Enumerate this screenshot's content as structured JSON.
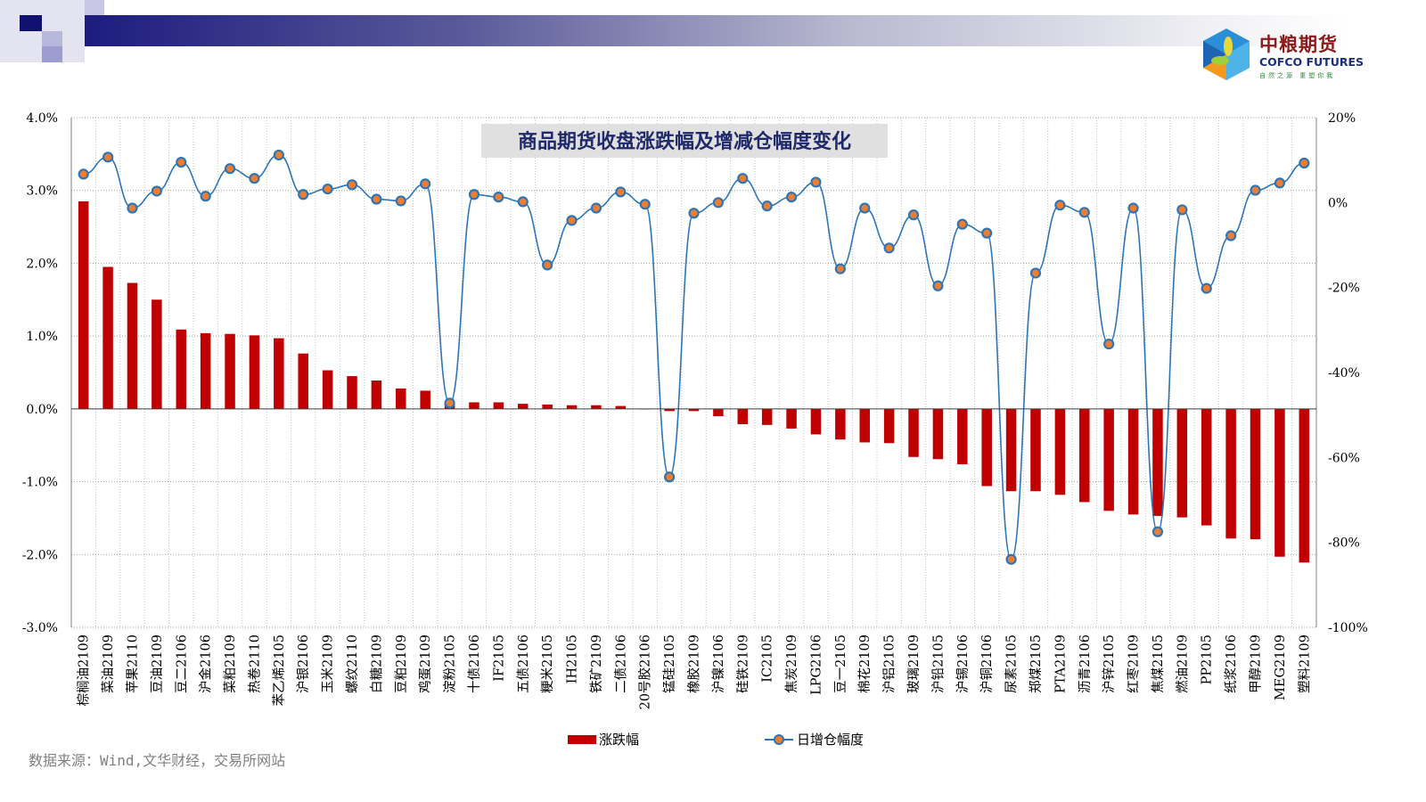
{
  "logo": {
    "cn": "中粮期货",
    "en": "COFCO FUTURES",
    "slogan": "自然之源 重塑你我"
  },
  "source": "数据来源：Wind,文华财经，交易所网站",
  "colors": {
    "bar": "#c00000",
    "line": "#2e75b6",
    "marker": "#ed7d31",
    "title_bg": "#e0e0e0",
    "title_text": "#1f2a6b"
  },
  "chart_data": {
    "type": "bar+line",
    "title": "商品期货收盘涨跌幅及增减仓幅度变化",
    "categories": [
      "棕榈油2109",
      "菜油2109",
      "苹果2110",
      "豆油2109",
      "豆二2106",
      "沪金2106",
      "菜粕2109",
      "热卷2110",
      "苯乙烯2105",
      "沪银2106",
      "玉米2109",
      "螺纹2110",
      "白糖2109",
      "豆粕2109",
      "鸡蛋2109",
      "淀粉2105",
      "十债2106",
      "IF2105",
      "五债2106",
      "粳米2105",
      "IH2105",
      "铁矿2109",
      "二债2106",
      "20号胶2106",
      "锰硅2105",
      "橡胶2109",
      "沪镍2106",
      "硅铁2109",
      "IC2105",
      "焦炭2109",
      "LPG2106",
      "豆一2105",
      "棉花2109",
      "沪铝2105",
      "玻璃2109",
      "沪铅2105",
      "沪锡2106",
      "沪铜2106",
      "尿素2105",
      "郑煤2105",
      "PTA2109",
      "沥青2106",
      "沪锌2105",
      "红枣2109",
      "焦煤2105",
      "燃油2109",
      "PP2105",
      "纸浆2106",
      "甲醇2109",
      "MEG2109",
      "塑料2109"
    ],
    "series": [
      {
        "name": "涨跌幅",
        "type": "bar",
        "axis": "left",
        "values": [
          2.85,
          1.95,
          1.73,
          1.5,
          1.09,
          1.04,
          1.03,
          1.01,
          0.97,
          0.76,
          0.53,
          0.45,
          0.39,
          0.28,
          0.25,
          0.07,
          0.09,
          0.09,
          0.07,
          0.06,
          0.05,
          0.05,
          0.04,
          0.0,
          -0.03,
          -0.03,
          -0.1,
          -0.21,
          -0.22,
          -0.27,
          -0.35,
          -0.42,
          -0.46,
          -0.47,
          -0.66,
          -0.69,
          -0.76,
          -1.06,
          -1.13,
          -1.13,
          -1.18,
          -1.28,
          -1.4,
          -1.45,
          -1.47,
          -1.49,
          -1.6,
          -1.78,
          -1.79,
          -2.03,
          -2.11
        ]
      },
      {
        "name": "日增仓幅度",
        "type": "line",
        "axis": "right",
        "values": [
          6.7,
          10.7,
          -1.3,
          2.7,
          9.5,
          1.5,
          8.0,
          5.7,
          11.2,
          1.9,
          3.2,
          4.2,
          0.8,
          0.4,
          4.4,
          -47.2,
          1.9,
          1.3,
          0.2,
          -14.7,
          -4.2,
          -1.3,
          2.5,
          -0.4,
          -64.6,
          -2.5,
          0.0,
          5.7,
          -0.8,
          1.3,
          4.8,
          -15.6,
          -1.3,
          -10.7,
          -2.9,
          -19.6,
          -5.1,
          -7.2,
          -84.0,
          -16.6,
          -0.6,
          -2.3,
          -33.3,
          -1.3,
          -77.5,
          -1.7,
          -20.2,
          -7.8,
          2.9,
          4.6,
          9.3
        ]
      }
    ],
    "left_axis": {
      "min": -3,
      "max": 4,
      "step": 1,
      "ticks": [
        "-3.0%",
        "-2.0%",
        "-1.0%",
        "0.0%",
        "1.0%",
        "2.0%",
        "3.0%",
        "4.0%"
      ]
    },
    "right_axis": {
      "min": -100,
      "max": 20,
      "step": 20,
      "ticks": [
        "-100%",
        "-80%",
        "-60%",
        "-40%",
        "-20%",
        "0%",
        "20%"
      ]
    },
    "grid": true,
    "legend_position": "bottom"
  }
}
